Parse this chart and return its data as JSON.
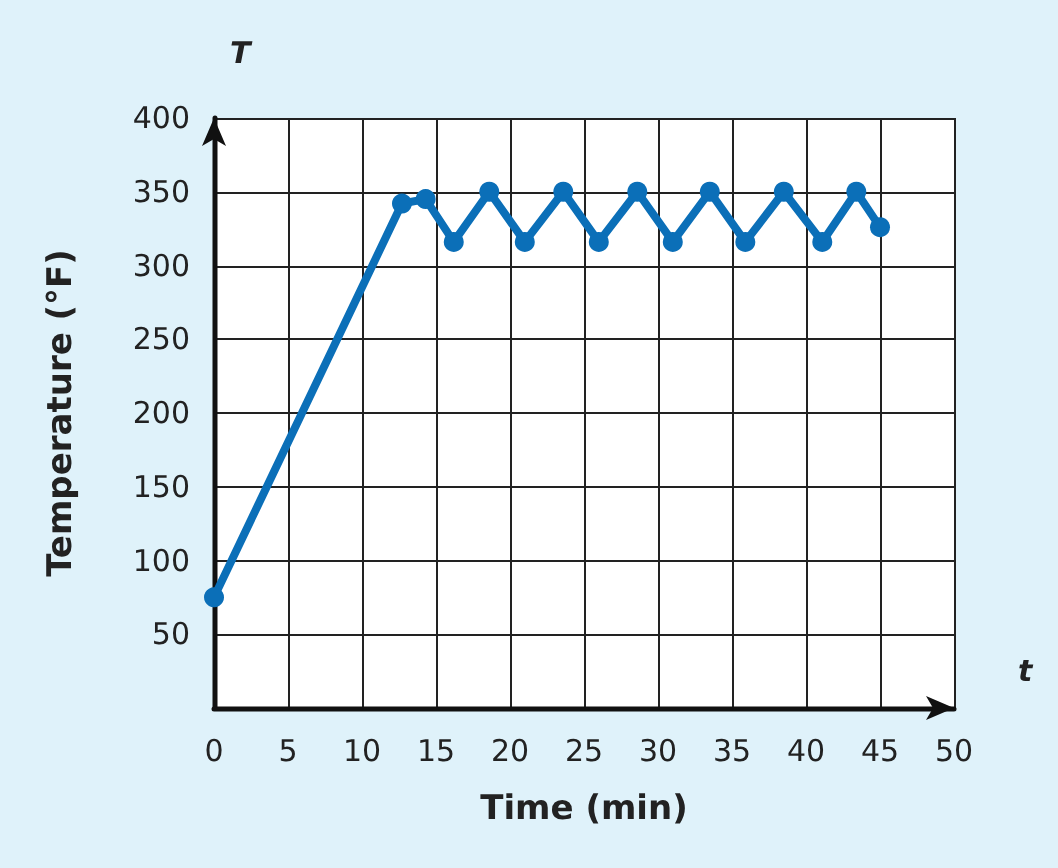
{
  "chart_data": {
    "type": "line",
    "xlabel": "Time (min)",
    "ylabel": "Temperature (°F)",
    "annotations": [
      "T",
      "t"
    ],
    "series": [
      {
        "color": "#0b6fb8",
        "x": [
          0,
          12.7,
          14.3,
          16.2,
          18.6,
          21.0,
          23.6,
          26.0,
          28.6,
          31.0,
          33.5,
          35.9,
          38.5,
          41.1,
          43.4,
          45.0
        ],
        "values": [
          75,
          342,
          345,
          316,
          350,
          316,
          350,
          316,
          350,
          316,
          350,
          316,
          350,
          316,
          350,
          326
        ]
      }
    ],
    "xlim": [
      0,
      50
    ],
    "xticks": [
      0,
      5,
      10,
      15,
      20,
      25,
      30,
      35,
      40,
      45,
      50
    ],
    "ylim": [
      0,
      400
    ],
    "yticks": [
      50,
      100,
      150,
      200,
      250,
      300,
      350,
      400
    ],
    "grid": true,
    "marker": "circle",
    "line_style": "solid"
  }
}
